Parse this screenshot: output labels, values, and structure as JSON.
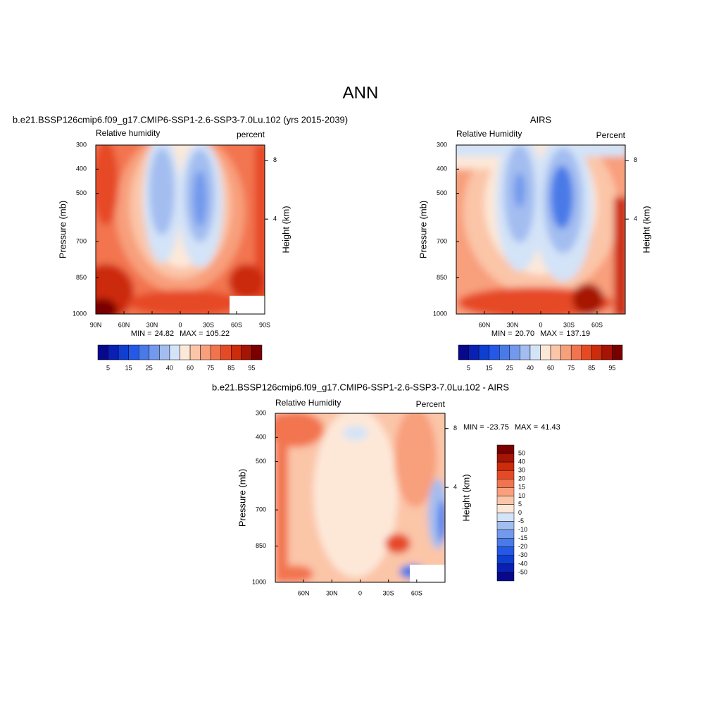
{
  "title": "ANN",
  "chart_data": [
    {
      "type": "contour",
      "title": "b.e21.BSSP126cmip6.f09_g17.CMIP6-SSP1-2.6-SSP3-7.0Lu.102 (yrs 2015-2039)",
      "left_label": "Relative humidity",
      "right_label": "percent",
      "y_label": "Pressure (mb)",
      "y2_label": "Height (km)",
      "ylim": [
        300,
        1000
      ],
      "yticks": [
        300,
        400,
        500,
        700,
        850,
        1000
      ],
      "y2ticks": [
        8,
        4
      ],
      "xlim": [
        90,
        -90
      ],
      "xticks": [
        {
          "value": 90,
          "label": "90N"
        },
        {
          "value": 60,
          "label": "60N"
        },
        {
          "value": 30,
          "label": "30N"
        },
        0,
        {
          "value": -30,
          "label": "30S"
        },
        {
          "value": -60,
          "label": "60S"
        },
        {
          "value": -90,
          "label": "90S"
        }
      ],
      "min_text": "MIN =",
      "min": 24.82,
      "max_text": "MAX =",
      "max": 105.22,
      "colorbar": {
        "orientation": "horizontal",
        "levels": [
          5,
          15,
          25,
          40,
          60,
          75,
          85,
          95
        ],
        "colors": [
          "#08088c",
          "#0a20b4",
          "#0f3fd1",
          "#2458e6",
          "#4a7ae8",
          "#7299ec",
          "#a3bdf0",
          "#d3e3f8",
          "#fde8d8",
          "#fbc5a8",
          "#f89f7c",
          "#f2744f",
          "#e64a25",
          "#cc2b0c",
          "#a61405",
          "#7a0000"
        ]
      }
    },
    {
      "type": "contour",
      "title": "AIRS",
      "left_label": "Relative Humidity",
      "right_label": "Percent",
      "y_label": "Pressure (mb)",
      "y2_label": "Height (km)",
      "ylim": [
        300,
        1000
      ],
      "yticks": [
        300,
        400,
        500,
        700,
        850,
        1000
      ],
      "y2ticks": [
        8,
        4
      ],
      "xlim": [
        90,
        -90
      ],
      "xticks": [
        {
          "value": 60,
          "label": "60N"
        },
        {
          "value": 30,
          "label": "30N"
        },
        0,
        {
          "value": -30,
          "label": "30S"
        },
        {
          "value": -60,
          "label": "60S"
        }
      ],
      "min_text": "MIN =",
      "min": {
        "value": 20.7,
        "label": "20.70"
      },
      "max_text": "MAX =",
      "max": 137.19,
      "colorbar": {
        "orientation": "horizontal",
        "levels": [
          5,
          15,
          25,
          40,
          60,
          75,
          85,
          95
        ],
        "colors": [
          "#08088c",
          "#0a20b4",
          "#0f3fd1",
          "#2458e6",
          "#4a7ae8",
          "#7299ec",
          "#a3bdf0",
          "#d3e3f8",
          "#fde8d8",
          "#fbc5a8",
          "#f89f7c",
          "#f2744f",
          "#e64a25",
          "#cc2b0c",
          "#a61405",
          "#7a0000"
        ]
      }
    },
    {
      "type": "contour",
      "title": "b.e21.BSSP126cmip6.f09_g17.CMIP6-SSP1-2.6-SSP3-7.0Lu.102 - AIRS",
      "left_label": "Relative Humidity",
      "right_label": "Percent",
      "y_label": "Pressure (mb)",
      "y2_label": "Height (km)",
      "ylim": [
        300,
        1000
      ],
      "yticks": [
        300,
        400,
        500,
        700,
        850,
        1000
      ],
      "y2ticks": [
        8,
        4
      ],
      "xlim": [
        90,
        -90
      ],
      "xticks": [
        {
          "value": 60,
          "label": "60N"
        },
        {
          "value": 30,
          "label": "30N"
        },
        0,
        {
          "value": -30,
          "label": "30S"
        },
        {
          "value": -60,
          "label": "60S"
        }
      ],
      "min_text": "MIN =",
      "min": -23.75,
      "max_text": "MAX =",
      "max": 41.43,
      "colorbar": {
        "orientation": "vertical",
        "levels": [
          50,
          40,
          30,
          20,
          15,
          10,
          5,
          0,
          -5,
          -10,
          -15,
          -20,
          -30,
          -40,
          -50
        ],
        "colors": [
          "#08088c",
          "#0a20b4",
          "#0f3fd1",
          "#2458e6",
          "#4a7ae8",
          "#7299ec",
          "#a3bdf0",
          "#d3e3f8",
          "#fde8d8",
          "#fbc5a8",
          "#f89f7c",
          "#f2744f",
          "#e64a25",
          "#cc2b0c",
          "#a61405",
          "#7a0000"
        ]
      }
    }
  ]
}
